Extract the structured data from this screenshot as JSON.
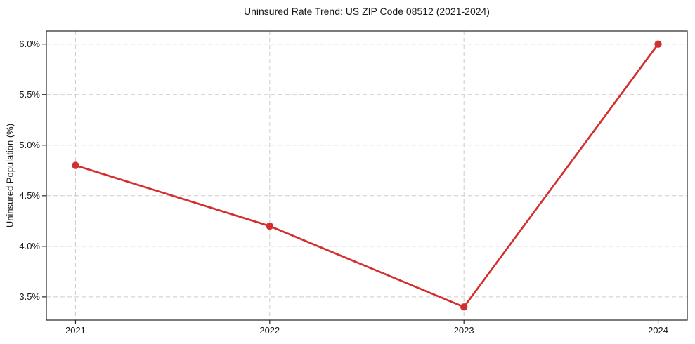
{
  "chart_data": {
    "type": "line",
    "title": "Uninsured Rate Trend: US ZIP Code 08512 (2021-2024)",
    "xlabel": "",
    "ylabel": "Uninsured Population (%)",
    "x": [
      2021,
      2022,
      2023,
      2024
    ],
    "values": [
      4.8,
      4.2,
      3.4,
      6.0
    ],
    "xticks": [
      2021,
      2022,
      2023,
      2024
    ],
    "xtick_labels": [
      "2021",
      "2022",
      "2023",
      "2024"
    ],
    "yticks": [
      3.5,
      4.0,
      4.5,
      5.0,
      5.5,
      6.0
    ],
    "ytick_labels": [
      "3.5%",
      "4.0%",
      "4.5%",
      "5.0%",
      "5.5%",
      "6.0%"
    ],
    "xlim": [
      2020.85,
      2024.15
    ],
    "ylim": [
      3.27,
      6.13
    ],
    "grid": true,
    "grid_style": "dashed",
    "legend": "none",
    "marker": "circle",
    "line_color": "#d32f2f",
    "grid_color": "#cccccc",
    "axis_color": "#262626",
    "text_color": "#1a1a1a",
    "background_color": "#ffffff"
  }
}
